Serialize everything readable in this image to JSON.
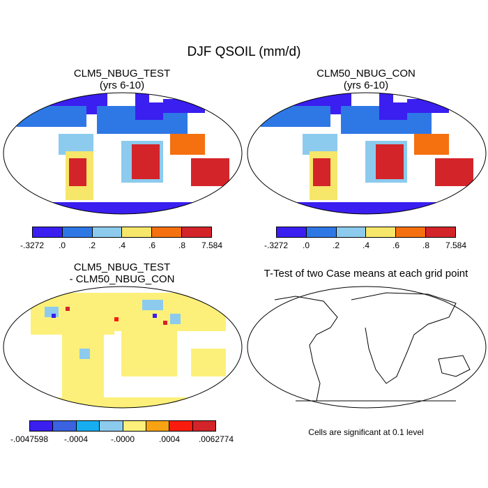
{
  "figure_title": "DJF QSOIL (mm/d)",
  "panels": {
    "top_left": {
      "title_line1": "CLM5_NBUG_TEST",
      "title_line2": "(yrs 6-10)"
    },
    "top_right": {
      "title_line1": "CLM50_NBUG_CON",
      "title_line2": "(yrs 6-10)"
    },
    "bottom_left": {
      "title_line1": "CLM5_NBUG_TEST",
      "title_line2": "- CLM50_NBUG_CON"
    },
    "bottom_right": {
      "title": "T-Test of two Case means at each grid point",
      "note": "Cells are significant at 0.1 level"
    }
  },
  "colorbar_case": {
    "colors": [
      "#3a1ff0",
      "#2e78e6",
      "#8ccbee",
      "#f6e66a",
      "#f5700f",
      "#d3242a"
    ],
    "labels": [
      ".3272 ",
      ".0",
      ".2",
      ".4",
      ".6",
      ".8",
      "7.584"
    ],
    "label_texts": [
      "-.3272",
      ".0",
      ".2",
      ".4",
      ".6",
      ".8",
      "7.584"
    ]
  },
  "colorbar_diff": {
    "colors": [
      "#3a1ff0",
      "#3b62e0",
      "#16aef0",
      "#8ccbee",
      "#fdf07a",
      "#f7a313",
      "#f91c0e",
      "#d3242a"
    ],
    "label_texts": [
      "-.0047598",
      "-.0004",
      "-.0000",
      ".0004",
      ".0062774"
    ]
  }
}
